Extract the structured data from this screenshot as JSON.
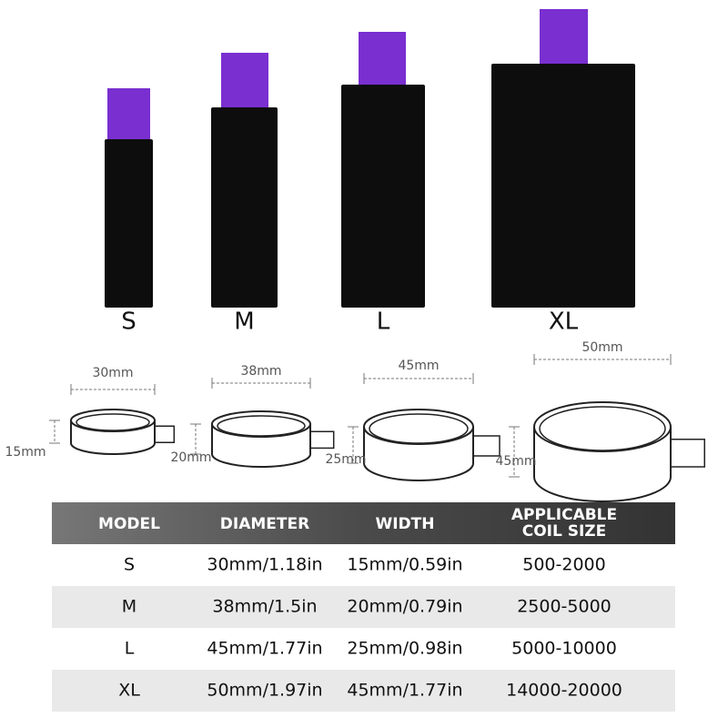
{
  "products": [
    {
      "label": "S"
    },
    {
      "label": "M"
    },
    {
      "label": "L"
    },
    {
      "label": "XL"
    }
  ],
  "rings": [
    {
      "diameter": "30mm",
      "height": "15mm"
    },
    {
      "diameter": "38mm",
      "height": "20mm"
    },
    {
      "diameter": "45mm",
      "height": "25mm"
    },
    {
      "diameter": "50mm",
      "height": "45mm"
    }
  ],
  "table": {
    "header": [
      "MODEL",
      "DIAMETER",
      "WIDTH",
      "APPLICABLE COIL SIZE"
    ],
    "rows": [
      [
        "S",
        "30mm/1.18in",
        "15mm/0.59in",
        "500-2000"
      ],
      [
        "M",
        "38mm/1.5in",
        "20mm/0.79in",
        "2500-5000"
      ],
      [
        "L",
        "45mm/1.77in",
        "25mm/0.98in",
        "5000-10000"
      ],
      [
        "XL",
        "50mm/1.97in",
        "45mm/1.77in",
        "14000-20000"
      ]
    ]
  }
}
